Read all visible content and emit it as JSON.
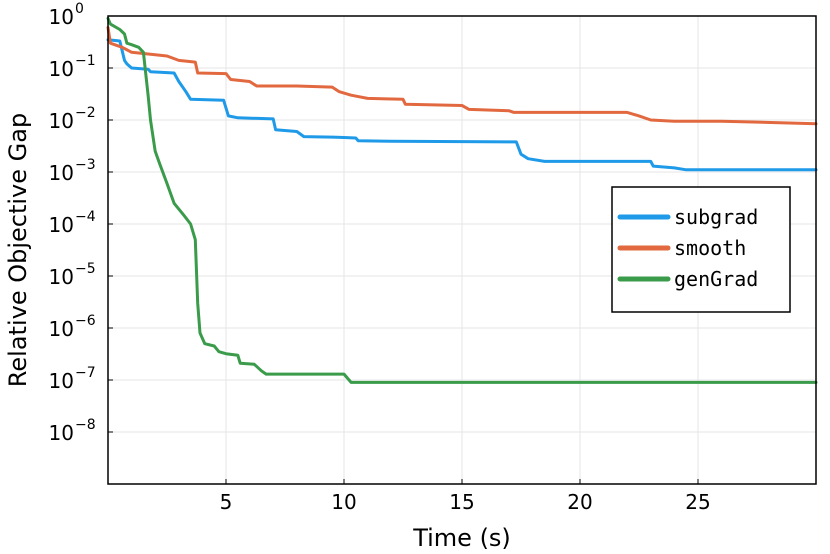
{
  "chart_data": {
    "type": "line",
    "xlabel": "Time (s)",
    "ylabel": "Relative Objective Gap",
    "xlim": [
      0,
      30
    ],
    "ylim": [
      1e-09,
      1
    ],
    "y_scale": "log",
    "x_ticks": [
      5,
      10,
      15,
      20,
      25
    ],
    "y_ticks": [
      {
        "base": "10",
        "exp": "0",
        "value": 1
      },
      {
        "base": "10",
        "exp": "−1",
        "value": 0.1
      },
      {
        "base": "10",
        "exp": "−2",
        "value": 0.01
      },
      {
        "base": "10",
        "exp": "−3",
        "value": 0.001
      },
      {
        "base": "10",
        "exp": "−4",
        "value": 0.0001
      },
      {
        "base": "10",
        "exp": "−5",
        "value": 1e-05
      },
      {
        "base": "10",
        "exp": "−6",
        "value": 1e-06
      },
      {
        "base": "10",
        "exp": "−7",
        "value": 1e-07
      },
      {
        "base": "10",
        "exp": "−8",
        "value": 1e-08
      }
    ],
    "grid": true,
    "legend_position": "right",
    "series": [
      {
        "name": "subgrad",
        "color": "#1f9ae8",
        "points": [
          [
            0,
            0.35
          ],
          [
            0.5,
            0.33
          ],
          [
            0.7,
            0.14
          ],
          [
            0.8,
            0.12
          ],
          [
            1.0,
            0.1
          ],
          [
            1.7,
            0.095
          ],
          [
            1.8,
            0.085
          ],
          [
            2.8,
            0.08
          ],
          [
            3.0,
            0.055
          ],
          [
            3.3,
            0.035
          ],
          [
            3.5,
            0.025
          ],
          [
            4.9,
            0.024
          ],
          [
            5.1,
            0.012
          ],
          [
            5.5,
            0.011
          ],
          [
            7.0,
            0.0105
          ],
          [
            7.1,
            0.0065
          ],
          [
            8.0,
            0.006
          ],
          [
            8.3,
            0.0048
          ],
          [
            9.5,
            0.0047
          ],
          [
            10.0,
            0.0046
          ],
          [
            10.5,
            0.0045
          ],
          [
            10.6,
            0.004
          ],
          [
            12.0,
            0.0039
          ],
          [
            17.3,
            0.0038
          ],
          [
            17.5,
            0.0022
          ],
          [
            17.8,
            0.0018
          ],
          [
            18.5,
            0.0016
          ],
          [
            23.0,
            0.0016
          ],
          [
            23.1,
            0.0013
          ],
          [
            24.0,
            0.0012
          ],
          [
            24.5,
            0.0011
          ],
          [
            30,
            0.0011
          ]
        ]
      },
      {
        "name": "smooth",
        "color": "#e2693f",
        "points": [
          [
            0,
            0.6
          ],
          [
            0.1,
            0.3
          ],
          [
            0.6,
            0.25
          ],
          [
            1.0,
            0.2
          ],
          [
            2.5,
            0.17
          ],
          [
            3.0,
            0.14
          ],
          [
            3.7,
            0.13
          ],
          [
            3.8,
            0.08
          ],
          [
            5.0,
            0.078
          ],
          [
            5.2,
            0.06
          ],
          [
            6.0,
            0.055
          ],
          [
            6.3,
            0.045
          ],
          [
            8.0,
            0.045
          ],
          [
            9.5,
            0.043
          ],
          [
            9.8,
            0.035
          ],
          [
            10.3,
            0.03
          ],
          [
            11.0,
            0.026
          ],
          [
            12.5,
            0.025
          ],
          [
            12.6,
            0.02
          ],
          [
            15.0,
            0.019
          ],
          [
            15.3,
            0.016
          ],
          [
            17.0,
            0.015
          ],
          [
            17.2,
            0.014
          ],
          [
            20.0,
            0.014
          ],
          [
            22.0,
            0.014
          ],
          [
            22.5,
            0.012
          ],
          [
            23.0,
            0.01
          ],
          [
            24.0,
            0.0095
          ],
          [
            26.0,
            0.0095
          ],
          [
            30,
            0.0085
          ]
        ]
      },
      {
        "name": "genGrad",
        "color": "#3a9b4a",
        "points": [
          [
            0,
            0.9
          ],
          [
            0.1,
            0.7
          ],
          [
            0.5,
            0.55
          ],
          [
            0.7,
            0.45
          ],
          [
            0.8,
            0.3
          ],
          [
            1.0,
            0.28
          ],
          [
            1.3,
            0.25
          ],
          [
            1.5,
            0.2
          ],
          [
            1.7,
            0.03
          ],
          [
            1.8,
            0.01
          ],
          [
            2.0,
            0.0025
          ],
          [
            2.2,
            0.0014
          ],
          [
            2.5,
            0.0006
          ],
          [
            2.8,
            0.00025
          ],
          [
            3.2,
            0.00015
          ],
          [
            3.5,
            0.0001
          ],
          [
            3.7,
            5e-05
          ],
          [
            3.8,
            3e-06
          ],
          [
            3.9,
            8e-07
          ],
          [
            4.1,
            5e-07
          ],
          [
            4.5,
            4.5e-07
          ],
          [
            4.7,
            3.5e-07
          ],
          [
            5.0,
            3.2e-07
          ],
          [
            5.5,
            3e-07
          ],
          [
            5.6,
            2.1e-07
          ],
          [
            6.2,
            2e-07
          ],
          [
            6.5,
            1.5e-07
          ],
          [
            6.7,
            1.3e-07
          ],
          [
            10.0,
            1.3e-07
          ],
          [
            10.3,
            9e-08
          ],
          [
            30,
            9e-08
          ]
        ]
      }
    ]
  }
}
